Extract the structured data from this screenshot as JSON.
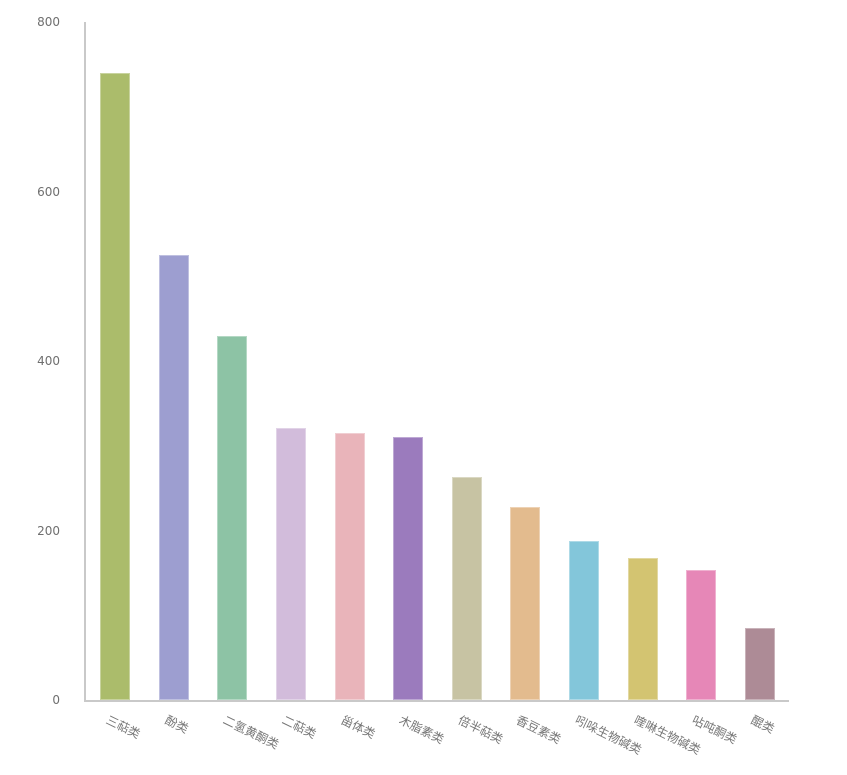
{
  "chart_data": {
    "type": "bar",
    "title": "",
    "xlabel": "",
    "ylabel": "",
    "categories": [
      "三萜类",
      "酚类",
      "二氢黄酮类",
      "二萜类",
      "甾体类",
      "木脂素类",
      "倍半萜类",
      "香豆素类",
      "吲哚生物碱类",
      "喹啉生物碱类",
      "呫吨酮类",
      "醌类"
    ],
    "values": [
      740,
      525,
      430,
      321,
      315,
      310,
      263,
      228,
      188,
      168,
      153,
      85
    ],
    "bar_colors": [
      "#abbc6b",
      "#9d9ed0",
      "#8dc3a5",
      "#d2bcdb",
      "#e9b4ba",
      "#9b7bbd",
      "#c7c3a3",
      "#e3bb8e",
      "#83c6da",
      "#d3c471",
      "#e687b7",
      "#ad8b96"
    ],
    "ylim": [
      0,
      800
    ],
    "yticks": [
      0,
      200,
      400,
      600,
      800
    ],
    "grid": false,
    "legend": null,
    "x_label_rotation_deg": 26,
    "axis_color": "#c9c9c9",
    "tick_label_color": "#6f6f6f",
    "background_color": "#ffffff"
  }
}
